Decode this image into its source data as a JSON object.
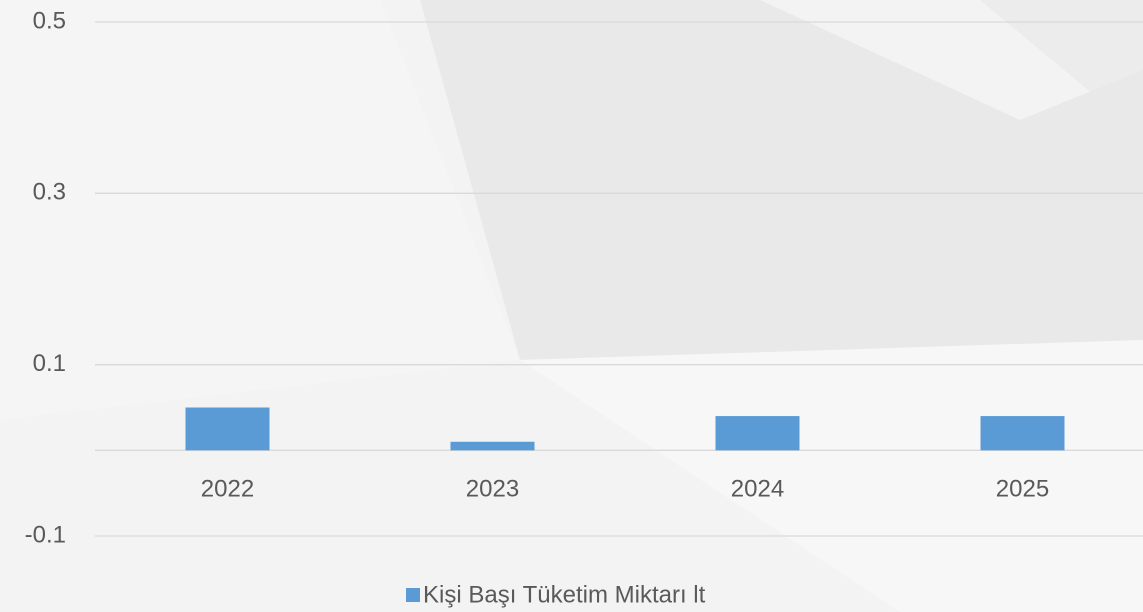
{
  "chart_data": {
    "type": "bar",
    "categories": [
      "2022",
      "2023",
      "2024",
      "2025"
    ],
    "series": [
      {
        "name": "Kişi Başı Tüketim Miktarı lt",
        "color": "#5b9bd5",
        "values": [
          0.05,
          0.01,
          0.04,
          0.04
        ]
      }
    ],
    "ylim": [
      -0.1,
      0.5
    ],
    "yticks": [
      -0.1,
      0.1,
      0.3,
      0.5
    ],
    "grid": true,
    "legend": "bottom"
  }
}
